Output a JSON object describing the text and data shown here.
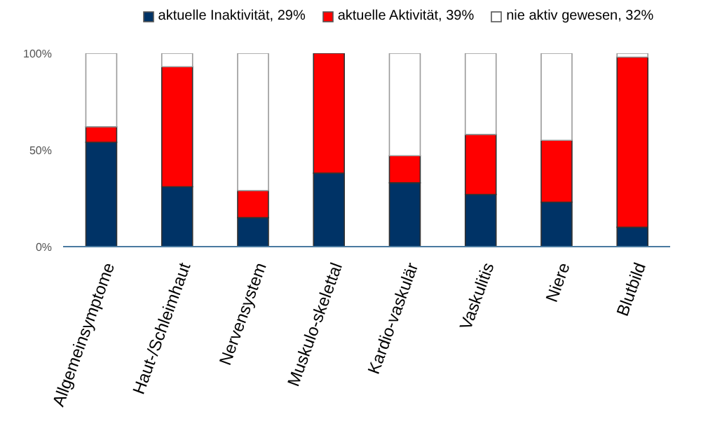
{
  "chart_data": {
    "type": "bar",
    "stacked": true,
    "categories": [
      "Allgemeinsymptome",
      "Haut-/Schleimhaut",
      "Nervensystem",
      "Muskulo-skelettal",
      "Kardio-vaskulär",
      "Vaskulitis",
      "Niere",
      "Blutbild"
    ],
    "series": [
      {
        "name": "aktuelle Inaktivität, 29%",
        "color": "#003366",
        "values": [
          54,
          31,
          15,
          38,
          33,
          27,
          23,
          10
        ]
      },
      {
        "name": "aktuelle Aktivität, 39%",
        "color": "#ff0000",
        "values": [
          8,
          62,
          14,
          62,
          14,
          31,
          32,
          88
        ]
      },
      {
        "name": "nie aktiv gewesen, 32%",
        "color": "#ffffff",
        "values": [
          38,
          7,
          71,
          0,
          53,
          42,
          45,
          2
        ]
      }
    ],
    "ylim": [
      0,
      100
    ],
    "yticks": [
      {
        "value": 0,
        "label": "0%"
      },
      {
        "value": 50,
        "label": "50%"
      },
      {
        "value": 100,
        "label": "100%"
      }
    ],
    "grid": false,
    "legend": "top"
  }
}
